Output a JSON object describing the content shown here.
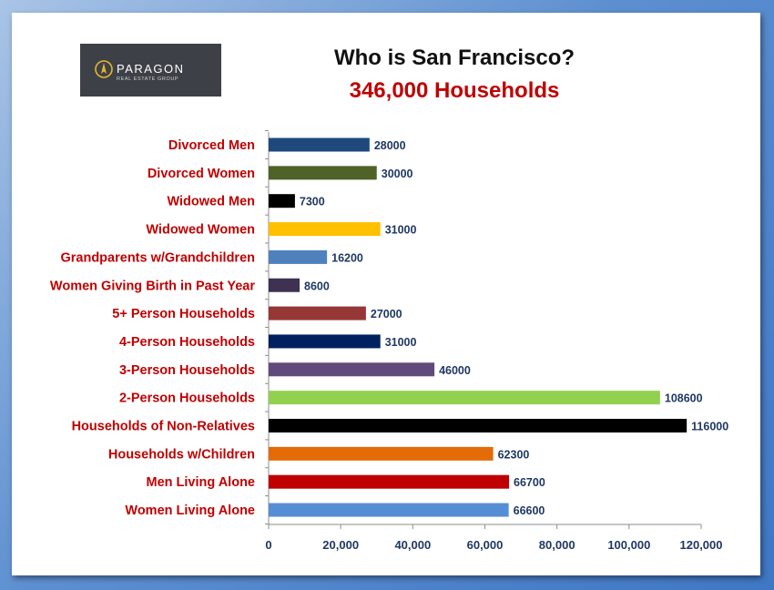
{
  "logo": {
    "brand": "PARAGON",
    "tagline": "REAL ESTATE GROUP",
    "mark_color": "#e3b72b"
  },
  "title": "Who is San Francisco?",
  "subtitle": "346,000 Households",
  "colors": {
    "label": "#c00000",
    "value": "#1f3864",
    "tick": "#1f3864"
  },
  "chart_data": {
    "type": "bar",
    "orientation": "horizontal",
    "categories": [
      "Divorced Men",
      "Divorced Women",
      "Widowed Men",
      "Widowed Women",
      "Grandparents w/Grandchildren",
      "Women Giving Birth in Past Year",
      "5+ Person Households",
      "4-Person Households",
      "3-Person Households",
      "2-Person Households",
      "Households of Non-Relatives",
      "Households w/Children",
      "Men Living Alone",
      "Women Living Alone"
    ],
    "values": [
      28000,
      30000,
      7300,
      31000,
      16200,
      8600,
      27000,
      31000,
      46000,
      108600,
      116000,
      62300,
      66700,
      66600
    ],
    "bar_colors": [
      "#1f497d",
      "#4f6228",
      "#000000",
      "#ffc000",
      "#4f81bd",
      "#3f3151",
      "#953735",
      "#002060",
      "#604a7b",
      "#92d050",
      "#000000",
      "#e36c09",
      "#c00000",
      "#558ed5"
    ],
    "xlim": [
      0,
      120000
    ],
    "xticks": [
      0,
      20000,
      40000,
      60000,
      80000,
      100000,
      120000
    ],
    "xtick_labels": [
      "0",
      "20,000",
      "40,000",
      "60,000",
      "80,000",
      "100,000",
      "120,000"
    ],
    "data_labels": true,
    "grid": false,
    "title": "Who is San Francisco?",
    "subtitle": "346,000 Households"
  }
}
